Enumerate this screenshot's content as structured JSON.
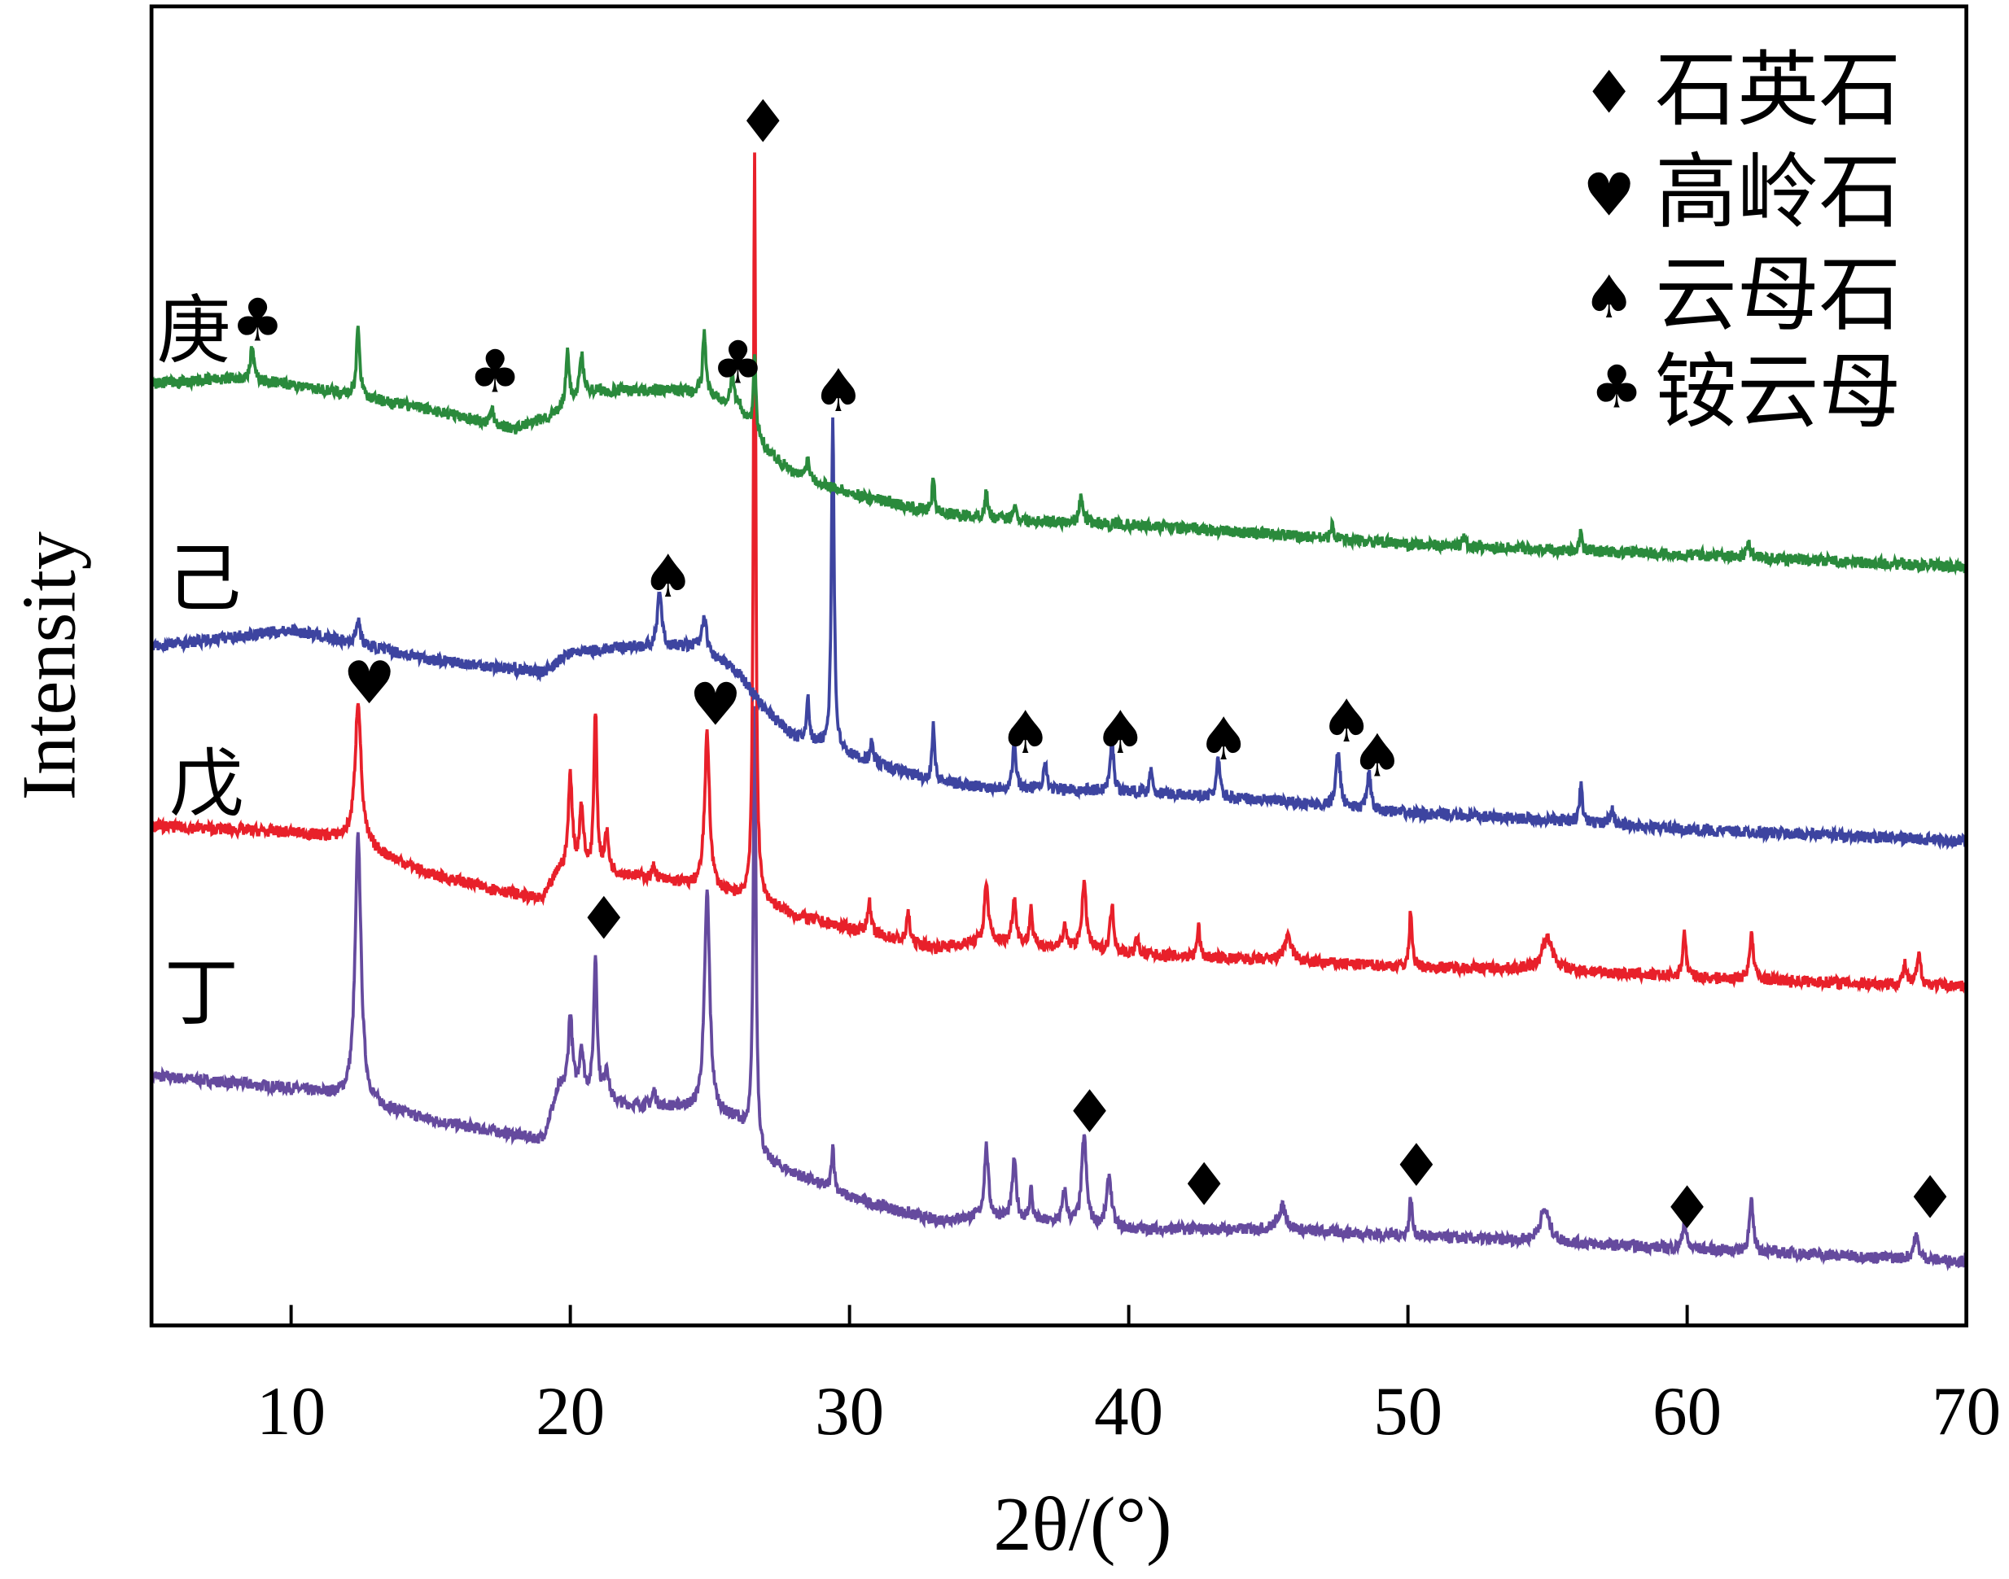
{
  "chart_data": {
    "type": "line",
    "title": "",
    "xlabel": "2θ/(°)",
    "ylabel": "Intensity",
    "xlim": [
      5,
      70
    ],
    "ylim": [
      0,
      1030
    ],
    "xticks": [
      10,
      20,
      30,
      40,
      50,
      60,
      70
    ],
    "grid": false,
    "legend_position": "top-right",
    "legend": [
      {
        "symbol": "♦",
        "label": "石英石"
      },
      {
        "symbol": "♥",
        "label": "高岭石"
      },
      {
        "symbol": "♠",
        "label": "云母石"
      },
      {
        "symbol": "♣",
        "label": "铵云母"
      }
    ],
    "series": [
      {
        "name": "丁",
        "color": "#654a9e",
        "baseline": [
          [
            5,
            195
          ],
          [
            10,
            185
          ],
          [
            11.5,
            180
          ],
          [
            15,
            160
          ],
          [
            19,
            145
          ],
          [
            19.6,
            185
          ],
          [
            22,
            172
          ],
          [
            24,
            170
          ],
          [
            26,
            160
          ],
          [
            27,
            128
          ],
          [
            30,
            100
          ],
          [
            33,
            82
          ],
          [
            35,
            85
          ],
          [
            40,
            75
          ],
          [
            45,
            75
          ],
          [
            50,
            70
          ],
          [
            55,
            65
          ],
          [
            60,
            60
          ],
          [
            65,
            55
          ],
          [
            70,
            50
          ]
        ],
        "peaks": [
          [
            12.4,
            207,
            0.18
          ],
          [
            20.0,
            60,
            0.12
          ],
          [
            20.4,
            35,
            0.12
          ],
          [
            20.9,
            110,
            0.1
          ],
          [
            21.3,
            25,
            0.12
          ],
          [
            23.0,
            12,
            0.1
          ],
          [
            24.9,
            172,
            0.16
          ],
          [
            26.6,
            345,
            0.08
          ],
          [
            29.4,
            35,
            0.08
          ],
          [
            34.9,
            55,
            0.12
          ],
          [
            35.9,
            45,
            0.12
          ],
          [
            36.5,
            25,
            0.08
          ],
          [
            37.7,
            25,
            0.12
          ],
          [
            38.4,
            70,
            0.14
          ],
          [
            39.3,
            40,
            0.14
          ],
          [
            45.5,
            18,
            0.25
          ],
          [
            50.1,
            30,
            0.08
          ],
          [
            54.9,
            25,
            0.3
          ],
          [
            59.9,
            22,
            0.1
          ],
          [
            62.3,
            38,
            0.12
          ],
          [
            68.2,
            18,
            0.15
          ]
        ]
      },
      {
        "name": "戊",
        "color": "#e8202a",
        "baseline": [
          [
            5,
            390
          ],
          [
            10,
            385
          ],
          [
            12,
            380
          ],
          [
            15,
            352
          ],
          [
            19,
            332
          ],
          [
            19.6,
            355
          ],
          [
            22,
            352
          ],
          [
            24,
            345
          ],
          [
            26,
            335
          ],
          [
            27,
            330
          ],
          [
            28,
            320
          ],
          [
            30,
            310
          ],
          [
            33,
            295
          ],
          [
            35,
            300
          ],
          [
            40,
            290
          ],
          [
            45,
            285
          ],
          [
            50,
            280
          ],
          [
            55,
            278
          ],
          [
            60,
            272
          ],
          [
            65,
            268
          ],
          [
            70,
            265
          ]
        ],
        "peaks": [
          [
            12.4,
            112,
            0.18
          ],
          [
            20.0,
            75,
            0.12
          ],
          [
            20.4,
            50,
            0.12
          ],
          [
            20.9,
            125,
            0.09
          ],
          [
            21.3,
            30,
            0.12
          ],
          [
            23.0,
            10,
            0.1
          ],
          [
            24.9,
            120,
            0.15
          ],
          [
            26.6,
            580,
            0.07
          ],
          [
            30.7,
            25,
            0.1
          ],
          [
            32.1,
            25,
            0.08
          ],
          [
            34.9,
            45,
            0.12
          ],
          [
            35.9,
            35,
            0.12
          ],
          [
            36.5,
            30,
            0.08
          ],
          [
            37.7,
            15,
            0.12
          ],
          [
            38.4,
            50,
            0.14
          ],
          [
            39.4,
            35,
            0.12
          ],
          [
            40.3,
            12,
            0.1
          ],
          [
            42.5,
            25,
            0.08
          ],
          [
            45.7,
            18,
            0.25
          ],
          [
            50.1,
            45,
            0.08
          ],
          [
            55.0,
            25,
            0.3
          ],
          [
            59.9,
            35,
            0.1
          ],
          [
            62.3,
            35,
            0.12
          ],
          [
            67.8,
            15,
            0.1
          ],
          [
            68.3,
            22,
            0.12
          ]
        ]
      },
      {
        "name": "己",
        "color": "#3d44a0",
        "baseline": [
          [
            5,
            530
          ],
          [
            10,
            543
          ],
          [
            15,
            520
          ],
          [
            19,
            510
          ],
          [
            20,
            525
          ],
          [
            22,
            530
          ],
          [
            24.5,
            530
          ],
          [
            26,
            510
          ],
          [
            27,
            480
          ],
          [
            28,
            460
          ],
          [
            30,
            445
          ],
          [
            33,
            425
          ],
          [
            35,
            420
          ],
          [
            40,
            417
          ],
          [
            45,
            410
          ],
          [
            50,
            400
          ],
          [
            55,
            395
          ],
          [
            60,
            387
          ],
          [
            65,
            383
          ],
          [
            70,
            378
          ]
        ],
        "peaks": [
          [
            12.4,
            20,
            0.12
          ],
          [
            23.2,
            45,
            0.12
          ],
          [
            24.8,
            25,
            0.15
          ],
          [
            28.5,
            35,
            0.08
          ],
          [
            29.4,
            262,
            0.08
          ],
          [
            30.8,
            15,
            0.1
          ],
          [
            33.0,
            45,
            0.08
          ],
          [
            35.9,
            35,
            0.1
          ],
          [
            37.0,
            25,
            0.08
          ],
          [
            39.4,
            40,
            0.1
          ],
          [
            40.8,
            20,
            0.08
          ],
          [
            43.2,
            30,
            0.1
          ],
          [
            47.5,
            45,
            0.12
          ],
          [
            48.6,
            30,
            0.1
          ],
          [
            56.2,
            30,
            0.08
          ],
          [
            57.3,
            12,
            0.12
          ]
        ]
      },
      {
        "name": "庚",
        "color": "#2a8a3c",
        "baseline": [
          [
            5,
            735
          ],
          [
            8,
            740
          ],
          [
            10,
            735
          ],
          [
            15,
            715
          ],
          [
            18,
            700
          ],
          [
            19.5,
            712
          ],
          [
            20.5,
            730
          ],
          [
            24,
            730
          ],
          [
            26,
            720
          ],
          [
            27,
            685
          ],
          [
            28,
            665
          ],
          [
            30,
            650
          ],
          [
            33,
            635
          ],
          [
            35,
            630
          ],
          [
            40,
            625
          ],
          [
            45,
            618
          ],
          [
            50,
            610
          ],
          [
            55,
            606
          ],
          [
            60,
            602
          ],
          [
            65,
            597
          ],
          [
            70,
            592
          ]
        ],
        "peaks": [
          [
            8.6,
            25,
            0.1
          ],
          [
            12.4,
            55,
            0.1
          ],
          [
            17.2,
            12,
            0.1
          ],
          [
            19.9,
            40,
            0.1
          ],
          [
            20.4,
            30,
            0.1
          ],
          [
            24.8,
            50,
            0.1
          ],
          [
            25.8,
            20,
            0.1
          ],
          [
            26.6,
            60,
            0.07
          ],
          [
            28.5,
            15,
            0.12
          ],
          [
            33.0,
            25,
            0.08
          ],
          [
            34.9,
            20,
            0.1
          ],
          [
            35.9,
            12,
            0.1
          ],
          [
            38.3,
            20,
            0.12
          ],
          [
            47.3,
            12,
            0.08
          ],
          [
            52.0,
            8,
            0.08
          ],
          [
            56.2,
            15,
            0.08
          ],
          [
            62.2,
            10,
            0.12
          ]
        ]
      }
    ],
    "annotations": [
      {
        "symbol": "♦",
        "x": 26.9,
        "y": 940
      },
      {
        "symbol": "♣",
        "x": 8.8,
        "y": 785
      },
      {
        "symbol": "♣",
        "x": 17.3,
        "y": 745
      },
      {
        "symbol": "♣",
        "x": 26.0,
        "y": 752
      },
      {
        "symbol": "♠",
        "x": 29.6,
        "y": 730
      },
      {
        "symbol": "♠",
        "x": 23.5,
        "y": 585
      },
      {
        "symbol": "♠",
        "x": 36.3,
        "y": 463
      },
      {
        "symbol": "♠",
        "x": 39.7,
        "y": 463
      },
      {
        "symbol": "♠",
        "x": 43.4,
        "y": 458
      },
      {
        "symbol": "♠",
        "x": 47.8,
        "y": 472
      },
      {
        "symbol": "♠",
        "x": 48.9,
        "y": 445
      },
      {
        "symbol": "♥",
        "x": 12.8,
        "y": 502
      },
      {
        "symbol": "♥",
        "x": 25.2,
        "y": 485
      },
      {
        "symbol": "♦",
        "x": 21.2,
        "y": 318
      },
      {
        "symbol": "♦",
        "x": 38.6,
        "y": 167
      },
      {
        "symbol": "♦",
        "x": 42.7,
        "y": 110
      },
      {
        "symbol": "♦",
        "x": 50.3,
        "y": 125
      },
      {
        "symbol": "♦",
        "x": 60.0,
        "y": 92
      },
      {
        "symbol": "♦",
        "x": 68.7,
        "y": 100
      }
    ]
  }
}
